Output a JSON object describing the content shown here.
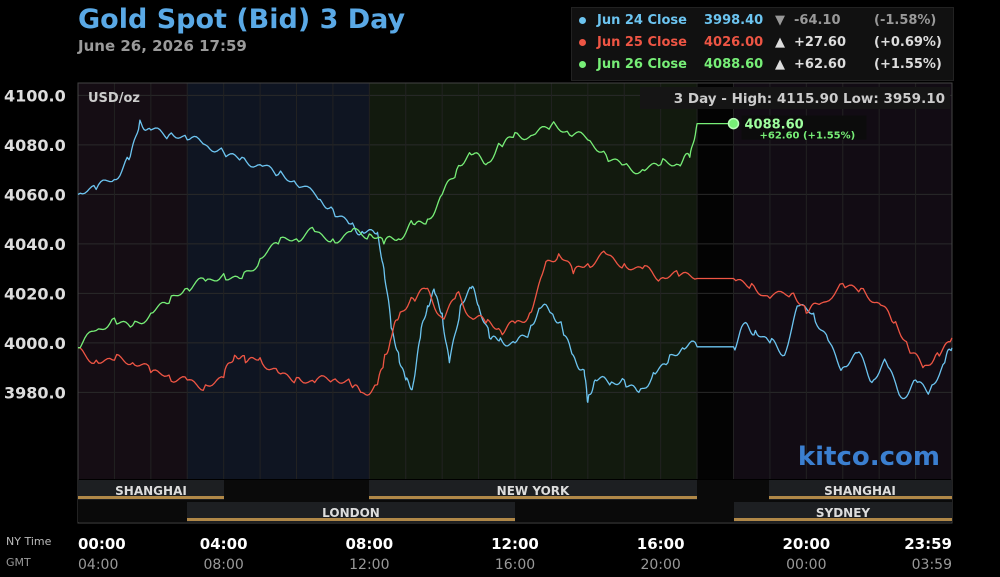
{
  "header": {
    "title": "Gold Spot (Bid) 3 Day",
    "datetime": "June 26, 2026 17:59"
  },
  "legend": [
    {
      "name": "Jun 24 Close",
      "value": "3998.40",
      "arrow": "▼",
      "change": "-64.10",
      "pct": "(-1.58%)",
      "color": "#6cc4f0"
    },
    {
      "name": "Jun 25 Close",
      "value": "4026.00",
      "arrow": "▲",
      "change": "+27.60",
      "pct": "(+0.69%)",
      "color": "#ee5544"
    },
    {
      "name": "Jun 26 Close",
      "value": "4088.60",
      "arrow": "▲",
      "change": "+62.60",
      "pct": "(+1.55%)",
      "color": "#77ee77"
    }
  ],
  "plot": {
    "unit_label": "USD/oz",
    "stats": "3 Day - High: 4115.90  Low: 3959.10",
    "last_value": "4088.60",
    "last_change": "+62.60 (+1.55%)",
    "watermark": "kitco.com"
  },
  "sessions": {
    "row1": [
      "SHANGHAI",
      "NEW YORK",
      "SHANGHAI"
    ],
    "row2": [
      "LONDON",
      "SYDNEY"
    ]
  },
  "time_axis": {
    "row1_label": "NY Time",
    "row2_label": "GMT",
    "ny": [
      "00:00",
      "04:00",
      "08:00",
      "12:00",
      "16:00",
      "20:00",
      "23:59"
    ],
    "gmt": [
      "04:00",
      "08:00",
      "12:00",
      "16:00",
      "20:00",
      "00:00",
      "03:59"
    ]
  },
  "chart_data": {
    "type": "line",
    "title": "Gold Spot (Bid) 3 Day",
    "ylabel": "USD/oz",
    "ylim": [
      3945,
      4105
    ],
    "yticks": [
      "4100.0",
      "4080.0",
      "4060.0",
      "4040.0",
      "4020.0",
      "4000.0",
      "3980.0"
    ],
    "x_unit": "NY time, hours",
    "xlim": [
      0,
      24
    ],
    "series": [
      {
        "name": "Jun 24 Close",
        "color": "#6cc4f0",
        "points": [
          [
            0,
            4060
          ],
          [
            0.5,
            4062
          ],
          [
            1,
            4066
          ],
          [
            1.4,
            4074
          ],
          [
            1.7,
            4090
          ],
          [
            2,
            4086
          ],
          [
            2.5,
            4084
          ],
          [
            3,
            4082
          ],
          [
            3.5,
            4080
          ],
          [
            4,
            4077
          ],
          [
            4.5,
            4075
          ],
          [
            5,
            4072
          ],
          [
            5.5,
            4068
          ],
          [
            6,
            4064
          ],
          [
            6.6,
            4058
          ],
          [
            7,
            4054
          ],
          [
            7.5,
            4048
          ],
          [
            7.8,
            4045
          ],
          [
            8.2,
            4044
          ],
          [
            8.4,
            4030
          ],
          [
            8.6,
            4006
          ],
          [
            8.8,
            3996
          ],
          [
            9,
            3985
          ],
          [
            9.2,
            3983
          ],
          [
            9.4,
            4002
          ],
          [
            9.6,
            4015
          ],
          [
            9.8,
            4020
          ],
          [
            10,
            4012
          ],
          [
            10.2,
            3992
          ],
          [
            10.5,
            4015
          ],
          [
            10.8,
            4022
          ],
          [
            11,
            4015
          ],
          [
            11.3,
            4002
          ],
          [
            11.6,
            4002
          ],
          [
            12,
            4000
          ],
          [
            12.4,
            4005
          ],
          [
            12.7,
            4014
          ],
          [
            13,
            4012
          ],
          [
            13.3,
            4006
          ],
          [
            13.6,
            3995
          ],
          [
            13.9,
            3989
          ],
          [
            14,
            3976
          ],
          [
            14.2,
            3985
          ],
          [
            14.6,
            3983
          ],
          [
            15,
            3985
          ],
          [
            15.4,
            3980
          ],
          [
            15.8,
            3988
          ],
          [
            16.2,
            3992
          ],
          [
            16.6,
            3998
          ],
          [
            17,
            3998.4
          ],
          [
            18,
            3998.4
          ],
          [
            18.3,
            4008
          ],
          [
            18.6,
            4005
          ],
          [
            19,
            4000
          ],
          [
            19.4,
            3995
          ],
          [
            19.8,
            4015
          ],
          [
            20.2,
            4012
          ],
          [
            20.6,
            4001
          ],
          [
            21,
            3990
          ],
          [
            21.4,
            3996
          ],
          [
            21.8,
            3984
          ],
          [
            22.2,
            3992
          ],
          [
            22.6,
            3978
          ],
          [
            23,
            3985
          ],
          [
            23.4,
            3981
          ],
          [
            23.8,
            3992
          ],
          [
            24,
            3998
          ]
        ]
      },
      {
        "name": "Jun 25 Close",
        "color": "#ee5544",
        "points": [
          [
            0,
            3998
          ],
          [
            0.5,
            3993
          ],
          [
            1,
            3993
          ],
          [
            1.5,
            3992
          ],
          [
            2,
            3988
          ],
          [
            2.5,
            3987
          ],
          [
            3,
            3985
          ],
          [
            3.5,
            3983
          ],
          [
            4,
            3986
          ],
          [
            4.3,
            3995
          ],
          [
            4.6,
            3992
          ],
          [
            5,
            3994
          ],
          [
            5.5,
            3988
          ],
          [
            6,
            3986
          ],
          [
            6.5,
            3984
          ],
          [
            7,
            3985
          ],
          [
            7.5,
            3983
          ],
          [
            7.8,
            3980
          ],
          [
            8.2,
            3983
          ],
          [
            8.4,
            3993
          ],
          [
            8.6,
            4002
          ],
          [
            8.8,
            4010
          ],
          [
            9.2,
            4018
          ],
          [
            9.6,
            4022
          ],
          [
            10,
            4010
          ],
          [
            10.4,
            4020
          ],
          [
            10.8,
            4010
          ],
          [
            11.2,
            4008
          ],
          [
            11.6,
            4005
          ],
          [
            12,
            4008
          ],
          [
            12.4,
            4012
          ],
          [
            12.8,
            4030
          ],
          [
            13.2,
            4036
          ],
          [
            13.6,
            4028
          ],
          [
            14,
            4032
          ],
          [
            14.5,
            4036
          ],
          [
            15,
            4032
          ],
          [
            15.5,
            4030
          ],
          [
            16,
            4026
          ],
          [
            16.5,
            4027
          ],
          [
            17,
            4026
          ],
          [
            18,
            4026
          ],
          [
            18.5,
            4024
          ],
          [
            19,
            4018
          ],
          [
            19.6,
            4020
          ],
          [
            20,
            4012
          ],
          [
            20.4,
            4016
          ],
          [
            21,
            4024
          ],
          [
            21.5,
            4022
          ],
          [
            22,
            4016
          ],
          [
            22.4,
            4008
          ],
          [
            22.8,
            3998
          ],
          [
            23.2,
            3990
          ],
          [
            23.6,
            3996
          ],
          [
            24,
            4002
          ]
        ]
      },
      {
        "name": "Jun 26 Close",
        "color": "#77ee77",
        "points": [
          [
            0,
            3998
          ],
          [
            0.5,
            4005
          ],
          [
            1,
            4010
          ],
          [
            1.5,
            4007
          ],
          [
            2,
            4012
          ],
          [
            2.5,
            4016
          ],
          [
            3,
            4022
          ],
          [
            3.5,
            4025
          ],
          [
            4,
            4028
          ],
          [
            4.5,
            4026
          ],
          [
            5,
            4034
          ],
          [
            5.5,
            4040
          ],
          [
            6,
            4042
          ],
          [
            6.5,
            4045
          ],
          [
            7,
            4042
          ],
          [
            7.5,
            4045
          ],
          [
            8,
            4044
          ],
          [
            8.4,
            4040
          ],
          [
            8.8,
            4042
          ],
          [
            9.2,
            4048
          ],
          [
            9.6,
            4050
          ],
          [
            10,
            4060
          ],
          [
            10.4,
            4070
          ],
          [
            10.8,
            4076
          ],
          [
            11.2,
            4072
          ],
          [
            11.6,
            4080
          ],
          [
            12,
            4085
          ],
          [
            12.5,
            4084
          ],
          [
            13,
            4088
          ],
          [
            13.5,
            4084
          ],
          [
            14,
            4082
          ],
          [
            14.5,
            4076
          ],
          [
            15,
            4072
          ],
          [
            15.5,
            4070
          ],
          [
            16,
            4072
          ],
          [
            16.5,
            4072
          ],
          [
            16.8,
            4075
          ],
          [
            17,
            4088.6
          ],
          [
            18,
            4088.6
          ]
        ]
      }
    ]
  }
}
